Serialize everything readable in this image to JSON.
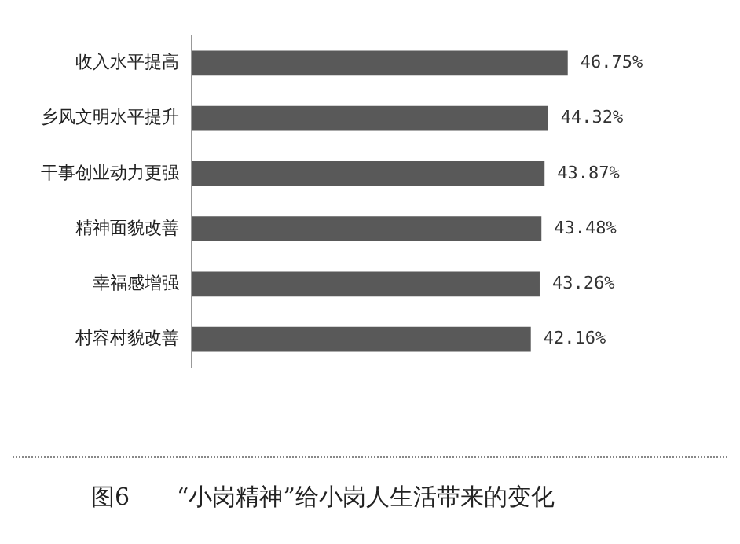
{
  "chart_data": {
    "type": "bar",
    "orientation": "horizontal",
    "title": "图6　　“小岗精神”给小岗人生活带来的变化",
    "categories": [
      "收入水平提高",
      "乡风文明水平提升",
      "干事创业动力更强",
      "精神面貌改善",
      "幸福感增强",
      "村容村貌改善"
    ],
    "values": [
      46.75,
      44.32,
      43.87,
      43.48,
      43.26,
      42.16
    ],
    "value_labels": [
      "46.75%",
      "44.32%",
      "43.87%",
      "43.48%",
      "43.26%",
      "42.16%"
    ],
    "color": "#595959",
    "legend": false
  }
}
